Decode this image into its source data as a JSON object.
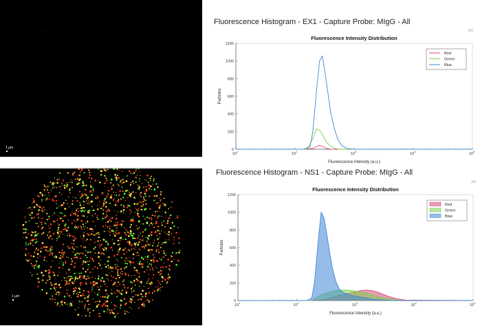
{
  "image_top": {
    "scale_label": "1 µm"
  },
  "image_bottom": {
    "scale_label": "1 µm"
  },
  "page_markers": {
    "top": "2/3",
    "bottom": "3/3"
  },
  "chart_data": [
    {
      "type": "line",
      "panel_title": "Fluorescence Histogram - EX1 - Capture Probe: MIgG - All",
      "title": "Fluorescence Intensity Distribution",
      "xlabel": "Fluorescence Intensity (a.u.)",
      "ylabel": "Particles",
      "xscale": "log",
      "xlim": [
        10,
        100000
      ],
      "ylim": [
        0,
        1200
      ],
      "xticks": [
        10,
        100,
        1000,
        10000,
        100000
      ],
      "xtick_labels": [
        "10",
        "10",
        "10",
        "10",
        "10"
      ],
      "xtick_exps": [
        "1",
        "2",
        "3",
        "4",
        "5"
      ],
      "yticks": [
        0,
        200,
        400,
        600,
        800,
        1000,
        1200
      ],
      "legend_position": "top-right",
      "filled": false,
      "series": [
        {
          "name": "Red",
          "color": "#d9477a",
          "x": [
            10,
            150,
            200,
            230,
            260,
            300,
            340,
            400,
            1000,
            100000
          ],
          "y": [
            0,
            0,
            10,
            30,
            45,
            30,
            10,
            0,
            0,
            0
          ]
        },
        {
          "name": "Green",
          "color": "#7ad14a",
          "x": [
            10,
            140,
            170,
            200,
            230,
            260,
            300,
            340,
            400,
            470,
            550,
            1000,
            100000
          ],
          "y": [
            0,
            0,
            30,
            120,
            230,
            215,
            150,
            80,
            35,
            10,
            0,
            0,
            0
          ]
        },
        {
          "name": "Blue",
          "color": "#3f86d6",
          "x": [
            10,
            150,
            180,
            200,
            230,
            260,
            290,
            320,
            360,
            400,
            460,
            530,
            620,
            750,
            900,
            1000,
            100000
          ],
          "y": [
            0,
            0,
            30,
            200,
            650,
            1000,
            1055,
            880,
            640,
            420,
            240,
            110,
            40,
            10,
            2,
            0,
            0
          ]
        }
      ]
    },
    {
      "type": "area",
      "panel_title": "Fluorescence Histogram - NS1 - Capture Probe: MIgG - All",
      "title": "Fluorescence Intensity Distribution",
      "xlabel": "Fluorescence Intensity (a.u.)",
      "ylabel": "Particles",
      "xscale": "log",
      "xlim": [
        10,
        100000
      ],
      "ylim": [
        0,
        1200
      ],
      "xticks": [
        10,
        100,
        1000,
        10000,
        100000
      ],
      "xtick_labels": [
        "10",
        "10",
        "10",
        "10",
        "10"
      ],
      "xtick_exps": [
        "1",
        "2",
        "3",
        "4",
        "5"
      ],
      "yticks": [
        0,
        200,
        400,
        600,
        800,
        1000,
        1200
      ],
      "legend_position": "top-right",
      "filled": true,
      "series": [
        {
          "name": "Red",
          "color": "#d9477a",
          "x": [
            10,
            200,
            300,
            400,
            500,
            700,
            1000,
            1300,
            1600,
            2000,
            2500,
            3500,
            5000,
            7000,
            100000
          ],
          "y": [
            0,
            0,
            10,
            35,
            55,
            75,
            100,
            115,
            118,
            110,
            90,
            50,
            20,
            5,
            0
          ]
        },
        {
          "name": "Green",
          "color": "#7ad14a",
          "x": [
            10,
            180,
            250,
            350,
            500,
            700,
            900,
            1200,
            1600,
            2200,
            3000,
            4500,
            6000,
            100000
          ],
          "y": [
            0,
            0,
            60,
            95,
            115,
            120,
            110,
            100,
            80,
            55,
            30,
            10,
            0,
            0
          ]
        },
        {
          "name": "Blue",
          "color": "#3f86d6",
          "x": [
            10,
            150,
            180,
            200,
            230,
            260,
            290,
            320,
            360,
            400,
            460,
            530,
            620,
            750,
            900,
            1100,
            1500,
            2000,
            3000,
            4000,
            100000
          ],
          "y": [
            0,
            0,
            30,
            200,
            650,
            1000,
            940,
            780,
            560,
            380,
            220,
            130,
            90,
            70,
            55,
            45,
            30,
            15,
            5,
            0,
            0
          ]
        }
      ]
    }
  ]
}
